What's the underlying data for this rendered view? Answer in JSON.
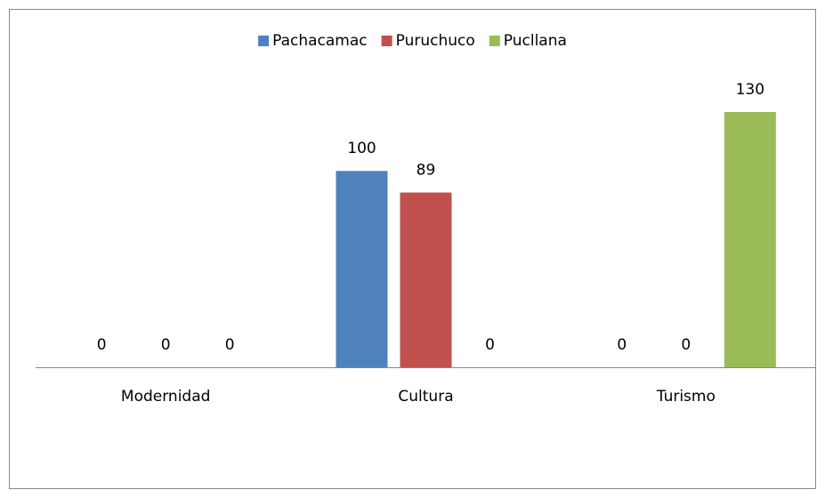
{
  "chart_data": {
    "type": "bar",
    "categories": [
      "Modernidad",
      "Cultura",
      "Turismo"
    ],
    "series": [
      {
        "name": "Pachacamac",
        "color": "#4f81bd",
        "values": [
          0,
          100,
          0
        ]
      },
      {
        "name": "Puruchuco",
        "color": "#c0504d",
        "values": [
          0,
          89,
          0
        ]
      },
      {
        "name": "Pucllana",
        "color": "#9bbb59",
        "values": [
          0,
          0,
          130
        ]
      }
    ],
    "legend": "top"
  }
}
